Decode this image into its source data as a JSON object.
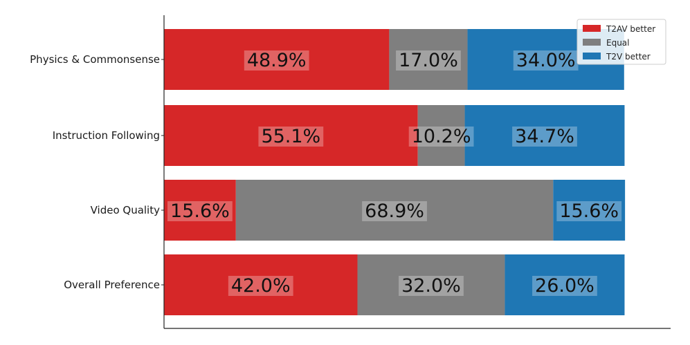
{
  "chart_data": {
    "type": "bar",
    "orientation": "horizontal",
    "stacked": true,
    "title": "",
    "xlabel": "",
    "ylabel": "",
    "categories": [
      "Physics & Commonsense",
      "Instruction Following",
      "Video Quality",
      "Overall Preference"
    ],
    "series": [
      {
        "name": "T2AV better",
        "color": "#d62728",
        "values": [
          48.9,
          55.1,
          15.6,
          42.0
        ]
      },
      {
        "name": "Equal",
        "color": "#7f7f7f",
        "values": [
          17.0,
          10.2,
          68.9,
          32.0
        ]
      },
      {
        "name": "T2V better",
        "color": "#1f77b4",
        "values": [
          34.0,
          34.7,
          15.6,
          26.0
        ]
      }
    ],
    "data_labels": [
      [
        "48.9%",
        "17.0%",
        "34.0%"
      ],
      [
        "55.1%",
        "10.2%",
        "34.7%"
      ],
      [
        "15.6%",
        "68.9%",
        "15.6%"
      ],
      [
        "42.0%",
        "32.0%",
        "26.0%"
      ]
    ],
    "row_totals": [
      99.9,
      100.0,
      100.1,
      100.0
    ],
    "xlim": [
      0,
      110
    ],
    "x_axis_ticks": "hidden",
    "grid": false,
    "legend": {
      "placement": "top-right",
      "entries": [
        "T2AV better",
        "Equal",
        "T2V better"
      ]
    }
  }
}
